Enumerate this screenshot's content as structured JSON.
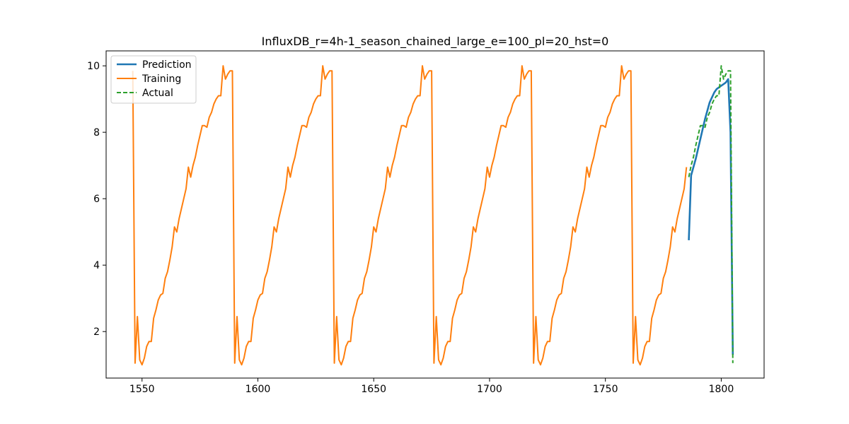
{
  "chart_data": {
    "type": "line",
    "title": "InfluxDB_r=4h-1_season_chained_large_e=100_pl=20_hst=0",
    "xlabel": "",
    "ylabel": "",
    "xlim": [
      1534.5,
      1818.5
    ],
    "ylim": [
      0.6,
      10.45
    ],
    "xticks": [
      1550,
      1600,
      1650,
      1700,
      1750,
      1800
    ],
    "yticks": [
      2,
      4,
      6,
      8,
      10
    ],
    "grid": false,
    "legend_position": "top-left",
    "season_template": [
      1.05,
      2.45,
      1.15,
      1.0,
      1.2,
      1.55,
      1.7,
      1.7,
      2.4,
      2.65,
      2.95,
      3.1,
      3.15,
      3.6,
      3.8,
      4.15,
      4.55,
      5.15,
      5.0,
      5.4,
      5.7,
      6.0,
      6.3,
      6.95,
      6.65,
      7.0,
      7.25,
      7.6,
      7.9,
      8.2,
      8.2,
      8.15,
      8.45,
      8.6,
      8.85,
      9.0,
      9.1,
      9.1,
      10.0,
      9.6,
      9.75,
      9.85,
      9.85
    ],
    "season_length": 43,
    "series": [
      {
        "name": "Prediction",
        "color": "#1f77b4",
        "style": "solid",
        "x": [
          1786,
          1787,
          1788,
          1789,
          1790,
          1791,
          1792,
          1793,
          1794,
          1795,
          1796,
          1797,
          1798,
          1799,
          1800,
          1801,
          1802,
          1803,
          1804,
          1805
        ],
        "values": [
          4.75,
          6.7,
          6.95,
          7.2,
          7.5,
          7.8,
          8.1,
          8.4,
          8.65,
          8.9,
          9.05,
          9.2,
          9.3,
          9.35,
          9.4,
          9.45,
          9.5,
          9.6,
          8.0,
          1.3
        ]
      },
      {
        "name": "Training",
        "color": "#ff7f0e",
        "style": "solid",
        "x_start": 1546,
        "x_end": 1785,
        "first_value": 9.85
      },
      {
        "name": "Actual",
        "color": "#2ca02c",
        "style": "dashed",
        "x": [
          1786,
          1787,
          1788,
          1789,
          1790,
          1791,
          1792,
          1793,
          1794,
          1795,
          1796,
          1797,
          1798,
          1799,
          1800,
          1801,
          1802,
          1803,
          1804,
          1805
        ],
        "values": [
          6.65,
          7.0,
          7.25,
          7.6,
          7.9,
          8.2,
          8.2,
          8.15,
          8.45,
          8.6,
          8.85,
          9.0,
          9.1,
          9.1,
          10.0,
          9.6,
          9.75,
          9.85,
          9.85,
          1.05
        ]
      }
    ]
  }
}
